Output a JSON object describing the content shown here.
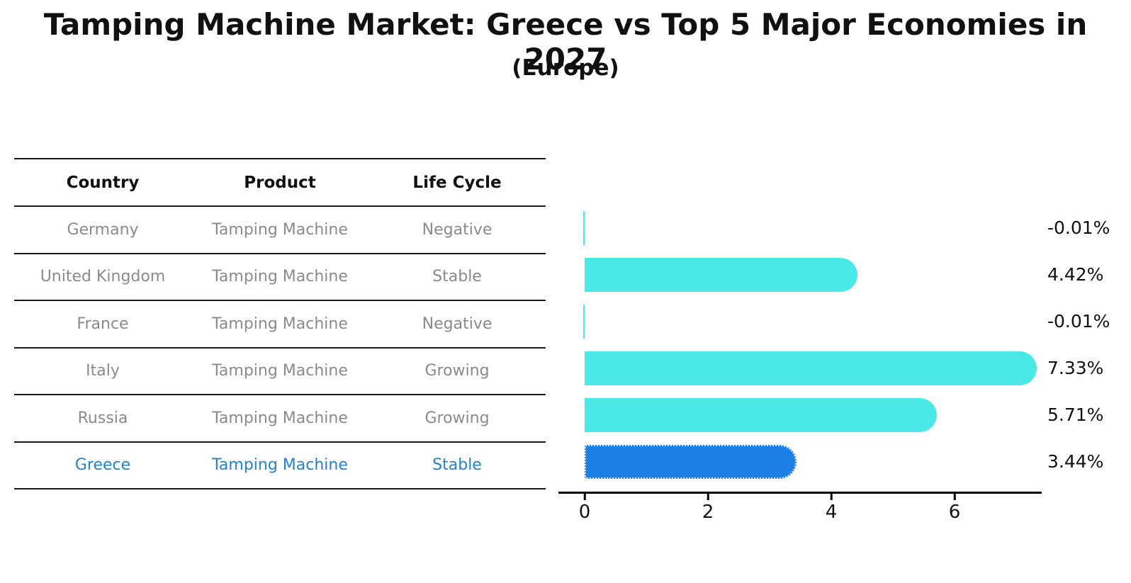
{
  "title": "Tamping Machine Market: Greece vs Top 5 Major Economies in 2027",
  "subtitle": "(Europe)",
  "table": {
    "headers": [
      "Country",
      "Product",
      "Life Cycle"
    ],
    "rows": [
      {
        "country": "Germany",
        "product": "Tamping Machine",
        "life_cycle": "Negative",
        "highlight": false
      },
      {
        "country": "United Kingdom",
        "product": "Tamping Machine",
        "life_cycle": "Stable",
        "highlight": false
      },
      {
        "country": "France",
        "product": "Tamping Machine",
        "life_cycle": "Negative",
        "highlight": false
      },
      {
        "country": "Italy",
        "product": "Tamping Machine",
        "life_cycle": "Growing",
        "highlight": false
      },
      {
        "country": "Russia",
        "product": "Tamping Machine",
        "life_cycle": "Growing",
        "highlight": false
      },
      {
        "country": "Greece",
        "product": "Tamping Machine",
        "life_cycle": "Stable",
        "highlight": true
      }
    ]
  },
  "chart_data": {
    "type": "bar",
    "orientation": "horizontal",
    "categories": [
      "Germany",
      "United Kingdom",
      "France",
      "Italy",
      "Russia",
      "Greece"
    ],
    "values": [
      -0.01,
      4.42,
      -0.01,
      7.33,
      5.71,
      3.44
    ],
    "value_labels": [
      "-0.01%",
      "4.42%",
      "-0.01%",
      "7.33%",
      "5.71%",
      "3.44%"
    ],
    "x_ticks": [
      0,
      2,
      4,
      6
    ],
    "xlim": [
      -0.43,
      7.41
    ],
    "grid": false,
    "legend": "none",
    "bar_color": "#4ae8e6",
    "highlight_color": "#1e7fe8",
    "highlight_border_color": "#cfe8ff",
    "highlight_index": 5,
    "highlight_text_color": "#2980c8"
  }
}
